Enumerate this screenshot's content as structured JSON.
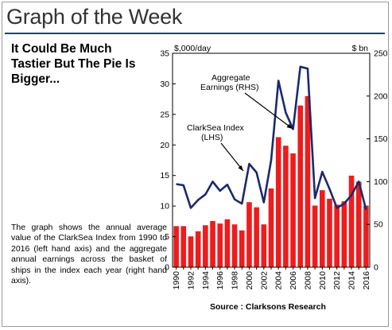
{
  "header": {
    "title": "Graph of the Week"
  },
  "headline": "It Could Be Much Tastier But The Pie Is Bigger...",
  "description": "The graph shows the annual average value of the ClarkSea Index from 1990 to 2016 (left hand axis) and the aggregate annual earnings across the basket of ships in the index each year (right hand axis).",
  "source": "Source : Clarksons Research",
  "colors": {
    "bars": "#ee1c1c",
    "line": "#1a2a6c",
    "rule": "#1f3c88"
  },
  "chart_data": {
    "type": "bar",
    "categories": [
      "1990",
      "1991",
      "1992",
      "1993",
      "1994",
      "1995",
      "1996",
      "1997",
      "1998",
      "1999",
      "2000",
      "2001",
      "2002",
      "2003",
      "2004",
      "2005",
      "2006",
      "2007",
      "2008",
      "2009",
      "2010",
      "2011",
      "2012",
      "2013",
      "2014",
      "2015",
      "2016"
    ],
    "x_tick_labels": [
      "1990",
      "1992",
      "1994",
      "1996",
      "1998",
      "2000",
      "2002",
      "2004",
      "2006",
      "2008",
      "2010",
      "2012",
      "2014",
      "2016"
    ],
    "series": [
      {
        "name": "Aggregate Earnings (RHS)",
        "kind": "bar",
        "axis": "right",
        "values": [
          48,
          48,
          36,
          42,
          49,
          54,
          51,
          56,
          50,
          43,
          76,
          70,
          50,
          92,
          152,
          142,
          133,
          189,
          200,
          72,
          90,
          80,
          73,
          77,
          107,
          100,
          72
        ]
      },
      {
        "name": "ClarkSea Index (LHS)",
        "kind": "line",
        "axis": "left",
        "values": [
          13.6,
          13.4,
          9.7,
          11.0,
          11.9,
          14.0,
          12.5,
          13.5,
          11.1,
          10.4,
          16.9,
          15.5,
          10.6,
          17.5,
          30.5,
          25.3,
          22.6,
          32.8,
          32.5,
          11.3,
          15.6,
          12.8,
          9.7,
          10.4,
          11.8,
          14.0,
          9.4
        ]
      }
    ],
    "ylabel_left": "$,000/day",
    "ylabel_right": "$ bn",
    "ylim_left": [
      0,
      35
    ],
    "ylim_right": [
      0,
      250
    ],
    "yticks_left": [
      0,
      5,
      10,
      15,
      20,
      25,
      30,
      35
    ],
    "yticks_right": [
      0,
      50,
      100,
      150,
      200,
      250
    ],
    "annotations": {
      "earnings_line1": "Aggregate",
      "earnings_line2": "Earnings (RHS)",
      "index_line1": "ClarkSea Index",
      "index_line2": "(LHS)"
    },
    "grid": false
  }
}
